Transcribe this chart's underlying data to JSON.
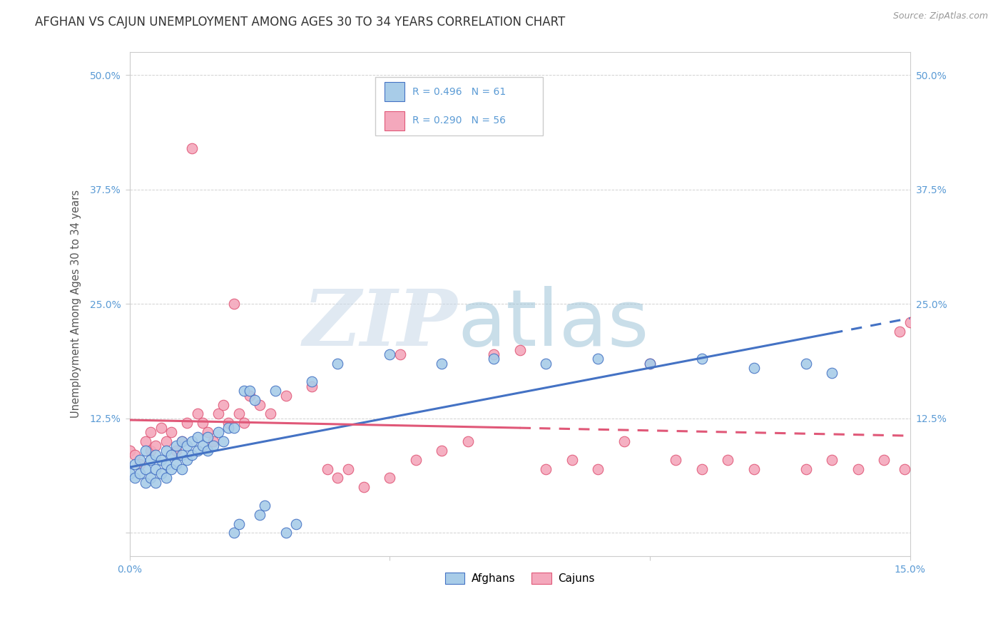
{
  "title": "AFGHAN VS CAJUN UNEMPLOYMENT AMONG AGES 30 TO 34 YEARS CORRELATION CHART",
  "source": "Source: ZipAtlas.com",
  "ylabel": "Unemployment Among Ages 30 to 34 years",
  "xlim": [
    0.0,
    0.15
  ],
  "ylim": [
    -0.025,
    0.525
  ],
  "yticks": [
    0.0,
    0.125,
    0.25,
    0.375,
    0.5
  ],
  "xticks": [
    0.0,
    0.05,
    0.1,
    0.15
  ],
  "background_color": "#ffffff",
  "legend_r_afghan": "R = 0.496",
  "legend_n_afghan": "N = 61",
  "legend_r_cajun": "R = 0.290",
  "legend_n_cajun": "N = 56",
  "afghan_color": "#a8cce8",
  "cajun_color": "#f4a8bc",
  "afghan_line_color": "#4472c4",
  "cajun_line_color": "#e05878",
  "title_fontsize": 12,
  "tick_fontsize": 10,
  "afghan_x": [
    0.0,
    0.001,
    0.001,
    0.002,
    0.002,
    0.003,
    0.003,
    0.003,
    0.004,
    0.004,
    0.005,
    0.005,
    0.005,
    0.006,
    0.006,
    0.007,
    0.007,
    0.007,
    0.008,
    0.008,
    0.009,
    0.009,
    0.01,
    0.01,
    0.01,
    0.011,
    0.011,
    0.012,
    0.012,
    0.013,
    0.013,
    0.014,
    0.015,
    0.015,
    0.016,
    0.017,
    0.018,
    0.019,
    0.02,
    0.02,
    0.021,
    0.022,
    0.023,
    0.024,
    0.025,
    0.026,
    0.028,
    0.03,
    0.032,
    0.035,
    0.04,
    0.05,
    0.06,
    0.07,
    0.08,
    0.09,
    0.1,
    0.11,
    0.12,
    0.13,
    0.135
  ],
  "afghan_y": [
    0.065,
    0.06,
    0.075,
    0.065,
    0.08,
    0.055,
    0.07,
    0.09,
    0.06,
    0.08,
    0.055,
    0.07,
    0.085,
    0.065,
    0.08,
    0.06,
    0.075,
    0.09,
    0.07,
    0.085,
    0.075,
    0.095,
    0.07,
    0.085,
    0.1,
    0.08,
    0.095,
    0.085,
    0.1,
    0.09,
    0.105,
    0.095,
    0.09,
    0.105,
    0.095,
    0.11,
    0.1,
    0.115,
    0.115,
    0.0,
    0.01,
    0.155,
    0.155,
    0.145,
    0.02,
    0.03,
    0.155,
    0.0,
    0.01,
    0.165,
    0.185,
    0.195,
    0.185,
    0.19,
    0.185,
    0.19,
    0.185,
    0.19,
    0.18,
    0.185,
    0.175
  ],
  "cajun_x": [
    0.0,
    0.001,
    0.002,
    0.003,
    0.004,
    0.004,
    0.005,
    0.006,
    0.007,
    0.008,
    0.009,
    0.01,
    0.011,
    0.012,
    0.013,
    0.014,
    0.015,
    0.016,
    0.017,
    0.018,
    0.019,
    0.02,
    0.021,
    0.022,
    0.023,
    0.025,
    0.027,
    0.03,
    0.035,
    0.038,
    0.04,
    0.042,
    0.045,
    0.05,
    0.052,
    0.055,
    0.06,
    0.065,
    0.07,
    0.075,
    0.08,
    0.085,
    0.09,
    0.095,
    0.1,
    0.105,
    0.11,
    0.115,
    0.12,
    0.13,
    0.135,
    0.14,
    0.145,
    0.148,
    0.149,
    0.15
  ],
  "cajun_y": [
    0.09,
    0.085,
    0.075,
    0.1,
    0.09,
    0.11,
    0.095,
    0.115,
    0.1,
    0.11,
    0.09,
    0.1,
    0.12,
    0.42,
    0.13,
    0.12,
    0.11,
    0.1,
    0.13,
    0.14,
    0.12,
    0.25,
    0.13,
    0.12,
    0.15,
    0.14,
    0.13,
    0.15,
    0.16,
    0.07,
    0.06,
    0.07,
    0.05,
    0.06,
    0.195,
    0.08,
    0.09,
    0.1,
    0.195,
    0.2,
    0.07,
    0.08,
    0.07,
    0.1,
    0.185,
    0.08,
    0.07,
    0.08,
    0.07,
    0.07,
    0.08,
    0.07,
    0.08,
    0.22,
    0.07,
    0.23
  ]
}
